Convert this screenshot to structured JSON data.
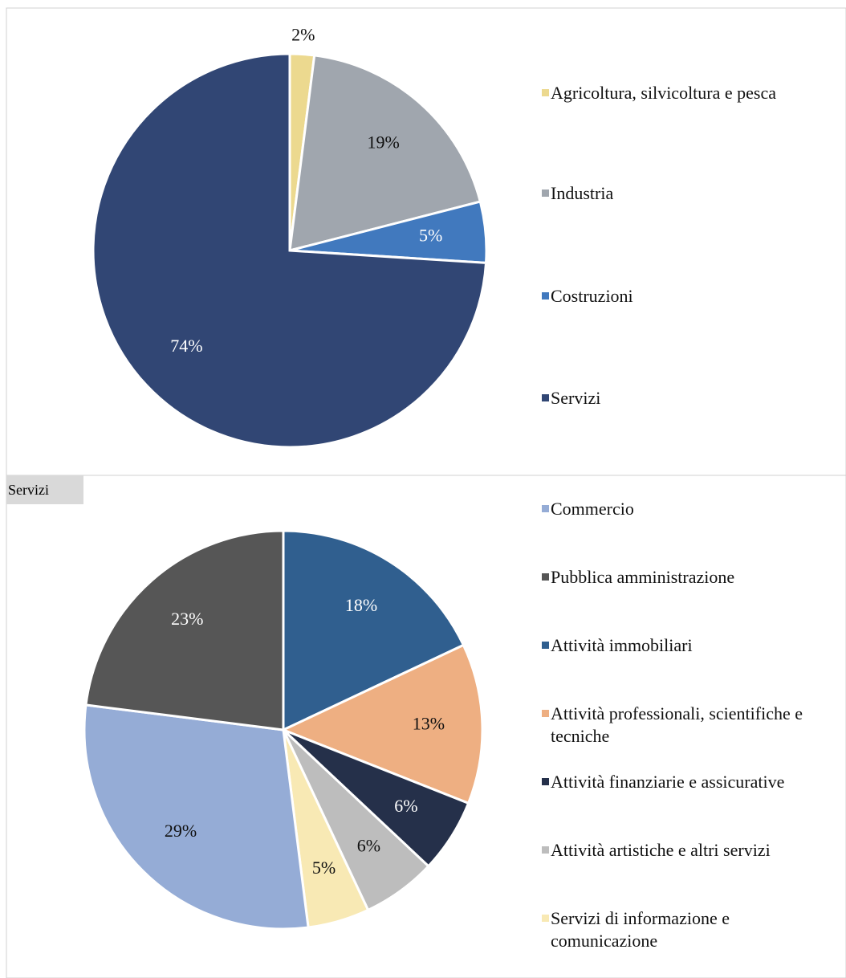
{
  "chart_data": [
    {
      "type": "pie",
      "categories": [
        "Agricoltura, silvicoltura e pesca",
        "Industria",
        "Costruzioni",
        "Servizi"
      ],
      "values": [
        2,
        19,
        5,
        74
      ],
      "value_labels": [
        "2%",
        "19%",
        "5%",
        "74%"
      ],
      "colors": [
        "#ecd98f",
        "#a0a6ae",
        "#4179be",
        "#314674"
      ],
      "legend": "right"
    },
    {
      "type": "pie",
      "title": "Servizi",
      "categories": [
        "Commercio",
        "Pubblica amministrazione",
        "Attività immobiliari",
        "Attività professionali, scientifiche e tecniche",
        "Attività finanziarie e assicurative",
        "Attività artistiche e altri servizi",
        "Servizi di informazione e comunicazione"
      ],
      "values": [
        29,
        23,
        18,
        13,
        6,
        6,
        5
      ],
      "value_labels": [
        "29%",
        "23%",
        "18%",
        "13%",
        "6%",
        "6%",
        "5%"
      ],
      "colors": [
        "#95acd6",
        "#565656",
        "#305f8f",
        "#eeaf82",
        "#25304a",
        "#bdbdbd",
        "#f8e9b4"
      ],
      "legend": "right"
    }
  ]
}
